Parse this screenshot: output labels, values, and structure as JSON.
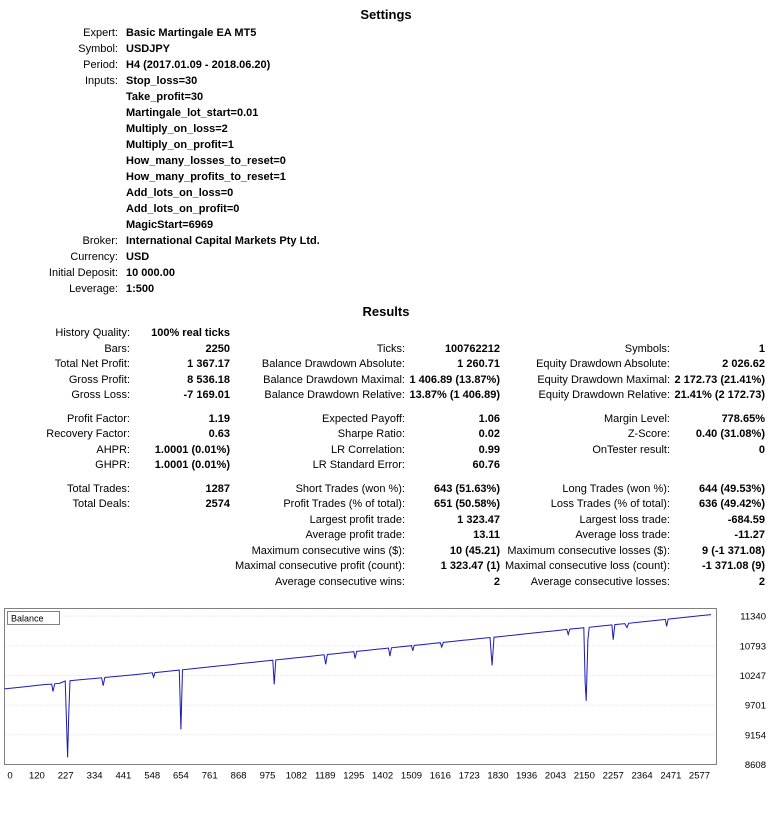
{
  "page": {
    "background": "#ffffff"
  },
  "settings": {
    "title": "Settings",
    "rows": [
      {
        "label": "Expert:",
        "value": "Basic Martingale EA MT5"
      },
      {
        "label": "Symbol:",
        "value": "USDJPY"
      },
      {
        "label": "Period:",
        "value": "H4 (2017.01.09 - 2018.06.20)"
      },
      {
        "label": "Inputs:",
        "value": "Stop_loss=30"
      },
      {
        "label": "",
        "value": "Take_profit=30"
      },
      {
        "label": "",
        "value": "Martingale_lot_start=0.01"
      },
      {
        "label": "",
        "value": "Multiply_on_loss=2"
      },
      {
        "label": "",
        "value": "Multiply_on_profit=1"
      },
      {
        "label": "",
        "value": "How_many_losses_to_reset=0"
      },
      {
        "label": "",
        "value": "How_many_profits_to_reset=1"
      },
      {
        "label": "",
        "value": "Add_lots_on_loss=0"
      },
      {
        "label": "",
        "value": "Add_lots_on_profit=0"
      },
      {
        "label": "",
        "value": "MagicStart=6969"
      },
      {
        "label": "Broker:",
        "value": "International Capital Markets Pty Ltd."
      },
      {
        "label": "Currency:",
        "value": "USD"
      },
      {
        "label": "Initial Deposit:",
        "value": "10 000.00"
      },
      {
        "label": "Leverage:",
        "value": "1:500"
      }
    ]
  },
  "results": {
    "title": "Results",
    "rows": [
      {
        "cells": [
          "History Quality:",
          "100% real ticks",
          "",
          "",
          "",
          ""
        ]
      },
      {
        "cells": [
          "Bars:",
          "2250",
          "Ticks:",
          "100762212",
          "Symbols:",
          "1"
        ]
      },
      {
        "cells": [
          "Total Net Profit:",
          "1 367.17",
          "Balance Drawdown Absolute:",
          "1 260.71",
          "Equity Drawdown Absolute:",
          "2 026.62"
        ]
      },
      {
        "cells": [
          "Gross Profit:",
          "8 536.18",
          "Balance Drawdown Maximal:",
          "1 406.89 (13.87%)",
          "Equity Drawdown Maximal:",
          "2 172.73 (21.41%)"
        ]
      },
      {
        "cells": [
          "Gross Loss:",
          "-7 169.01",
          "Balance Drawdown Relative:",
          "13.87% (1 406.89)",
          "Equity Drawdown Relative:",
          "21.41% (2 172.73)"
        ]
      },
      {
        "spacer": true
      },
      {
        "cells": [
          "Profit Factor:",
          "1.19",
          "Expected Payoff:",
          "1.06",
          "Margin Level:",
          "778.65%"
        ]
      },
      {
        "cells": [
          "Recovery Factor:",
          "0.63",
          "Sharpe Ratio:",
          "0.02",
          "Z-Score:",
          "0.40 (31.08%)"
        ]
      },
      {
        "cells": [
          "AHPR:",
          "1.0001 (0.01%)",
          "LR Correlation:",
          "0.99",
          "OnTester result:",
          "0"
        ]
      },
      {
        "cells": [
          "GHPR:",
          "1.0001 (0.01%)",
          "LR Standard Error:",
          "60.76",
          "",
          ""
        ]
      },
      {
        "spacer": true
      },
      {
        "cells": [
          "Total Trades:",
          "1287",
          "Short Trades (won %):",
          "643 (51.63%)",
          "Long Trades (won %):",
          "644 (49.53%)"
        ]
      },
      {
        "cells": [
          "Total Deals:",
          "2574",
          "Profit Trades (% of total):",
          "651 (50.58%)",
          "Loss Trades (% of total):",
          "636 (49.42%)"
        ]
      },
      {
        "cells": [
          "",
          "",
          "Largest profit trade:",
          "1 323.47",
          "Largest loss trade:",
          "-684.59"
        ]
      },
      {
        "cells": [
          "",
          "",
          "Average profit trade:",
          "13.11",
          "Average loss trade:",
          "-11.27"
        ]
      },
      {
        "cells": [
          "",
          "",
          "Maximum consecutive wins ($):",
          "10 (45.21)",
          "Maximum consecutive losses ($):",
          "9 (-1 371.08)"
        ]
      },
      {
        "cells": [
          "",
          "",
          "Maximal consecutive profit (count):",
          "1 323.47 (1)",
          "Maximal consecutive loss (count):",
          "-1 371.08 (9)"
        ]
      },
      {
        "cells": [
          "",
          "",
          "Average consecutive wins:",
          "2",
          "Average consecutive losses:",
          "2"
        ]
      }
    ]
  },
  "chart_data": {
    "type": "line",
    "title": "Balance",
    "legend_label": "Balance",
    "line_color": "#1a1ab8",
    "border_color": "#808080",
    "grid_color": "#d9d9d9",
    "xlim": [
      0,
      2640
    ],
    "ylim": [
      8608,
      11480
    ],
    "y_ticks": [
      8608,
      9154,
      9701,
      10247,
      10793,
      11340
    ],
    "x_ticks": [
      0,
      120,
      227,
      334,
      441,
      548,
      654,
      761,
      868,
      975,
      1082,
      1189,
      1295,
      1402,
      1509,
      1616,
      1723,
      1830,
      1936,
      2043,
      2150,
      2257,
      2364,
      2471,
      2577
    ],
    "series": [
      {
        "name": "Balance",
        "color": "#1a1ab8",
        "points": [
          [
            0,
            10000
          ],
          [
            40,
            10022
          ],
          [
            80,
            10043
          ],
          [
            120,
            10064
          ],
          [
            150,
            10080
          ],
          [
            175,
            10089
          ],
          [
            180,
            9952
          ],
          [
            186,
            10094
          ],
          [
            205,
            10104
          ],
          [
            225,
            10146
          ],
          [
            230,
            9400
          ],
          [
            234,
            8739
          ],
          [
            238,
            9500
          ],
          [
            243,
            10150
          ],
          [
            270,
            10163
          ],
          [
            300,
            10176
          ],
          [
            334,
            10192
          ],
          [
            360,
            10205
          ],
          [
            366,
            10060
          ],
          [
            372,
            10210
          ],
          [
            400,
            10222
          ],
          [
            441,
            10243
          ],
          [
            480,
            10262
          ],
          [
            520,
            10282
          ],
          [
            548,
            10296
          ],
          [
            553,
            10215
          ],
          [
            558,
            10300
          ],
          [
            590,
            10316
          ],
          [
            620,
            10332
          ],
          [
            648,
            10346
          ],
          [
            654,
            9253
          ],
          [
            660,
            10352
          ],
          [
            700,
            10373
          ],
          [
            740,
            10394
          ],
          [
            761,
            10405
          ],
          [
            800,
            10425
          ],
          [
            840,
            10446
          ],
          [
            868,
            10461
          ],
          [
            900,
            10478
          ],
          [
            940,
            10499
          ],
          [
            975,
            10517
          ],
          [
            995,
            10528
          ],
          [
            1000,
            10082
          ],
          [
            1006,
            10534
          ],
          [
            1040,
            10551
          ],
          [
            1082,
            10573
          ],
          [
            1120,
            10593
          ],
          [
            1160,
            10614
          ],
          [
            1185,
            10628
          ],
          [
            1191,
            10452
          ],
          [
            1197,
            10633
          ],
          [
            1230,
            10650
          ],
          [
            1270,
            10671
          ],
          [
            1295,
            10685
          ],
          [
            1300,
            10562
          ],
          [
            1306,
            10690
          ],
          [
            1340,
            10707
          ],
          [
            1380,
            10728
          ],
          [
            1402,
            10740
          ],
          [
            1424,
            10752
          ],
          [
            1429,
            10601
          ],
          [
            1435,
            10757
          ],
          [
            1470,
            10775
          ],
          [
            1509,
            10796
          ],
          [
            1514,
            10702
          ],
          [
            1519,
            10800
          ],
          [
            1550,
            10816
          ],
          [
            1590,
            10837
          ],
          [
            1616,
            10851
          ],
          [
            1621,
            10772
          ],
          [
            1627,
            10856
          ],
          [
            1660,
            10873
          ],
          [
            1700,
            10894
          ],
          [
            1723,
            10906
          ],
          [
            1760,
            10926
          ],
          [
            1800,
            10947
          ],
          [
            1808,
            10432
          ],
          [
            1815,
            10952
          ],
          [
            1850,
            10970
          ],
          [
            1890,
            10991
          ],
          [
            1930,
            11013
          ],
          [
            1970,
            11034
          ],
          [
            2000,
            11050
          ],
          [
            2043,
            11072
          ],
          [
            2085,
            11095
          ],
          [
            2090,
            11002
          ],
          [
            2096,
            11100
          ],
          [
            2130,
            11118
          ],
          [
            2148,
            11127
          ],
          [
            2153,
            10100
          ],
          [
            2157,
            9779
          ],
          [
            2163,
            10900
          ],
          [
            2168,
            11133
          ],
          [
            2200,
            11150
          ],
          [
            2240,
            11171
          ],
          [
            2252,
            11178
          ],
          [
            2257,
            10905
          ],
          [
            2263,
            11183
          ],
          [
            2300,
            11202
          ],
          [
            2308,
            11128
          ],
          [
            2314,
            11208
          ],
          [
            2350,
            11227
          ],
          [
            2390,
            11248
          ],
          [
            2430,
            11269
          ],
          [
            2450,
            11280
          ],
          [
            2455,
            11152
          ],
          [
            2461,
            11285
          ],
          [
            2500,
            11305
          ],
          [
            2540,
            11326
          ],
          [
            2577,
            11346
          ],
          [
            2620,
            11367
          ]
        ]
      }
    ]
  }
}
